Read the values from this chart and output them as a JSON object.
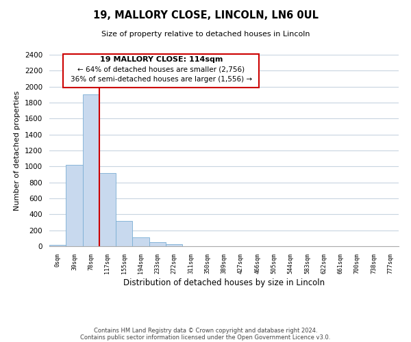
{
  "title": "19, MALLORY CLOSE, LINCOLN, LN6 0UL",
  "subtitle": "Size of property relative to detached houses in Lincoln",
  "xlabel": "Distribution of detached houses by size in Lincoln",
  "ylabel": "Number of detached properties",
  "bar_labels": [
    "0sqm",
    "39sqm",
    "78sqm",
    "117sqm",
    "155sqm",
    "194sqm",
    "233sqm",
    "272sqm",
    "311sqm",
    "350sqm",
    "389sqm",
    "427sqm",
    "466sqm",
    "505sqm",
    "544sqm",
    "583sqm",
    "622sqm",
    "661sqm",
    "700sqm",
    "738sqm",
    "777sqm"
  ],
  "bar_values": [
    20,
    1020,
    1900,
    920,
    320,
    110,
    50,
    30,
    0,
    0,
    0,
    0,
    0,
    0,
    0,
    0,
    0,
    0,
    0,
    0,
    0
  ],
  "bar_color": "#c8d9ee",
  "bar_edge_color": "#7aaed4",
  "ylim": [
    0,
    2400
  ],
  "yticks": [
    0,
    200,
    400,
    600,
    800,
    1000,
    1200,
    1400,
    1600,
    1800,
    2000,
    2200,
    2400
  ],
  "vline_x_index": 3,
  "vline_color": "#cc0000",
  "annotation_title": "19 MALLORY CLOSE: 114sqm",
  "annotation_line1": "← 64% of detached houses are smaller (2,756)",
  "annotation_line2": "36% of semi-detached houses are larger (1,556) →",
  "footer_line1": "Contains HM Land Registry data © Crown copyright and database right 2024.",
  "footer_line2": "Contains public sector information licensed under the Open Government Licence v3.0.",
  "background_color": "#ffffff",
  "annotation_box_color": "#ffffff",
  "annotation_box_edge": "#cc0000",
  "grid_color": "#c8d4e0"
}
